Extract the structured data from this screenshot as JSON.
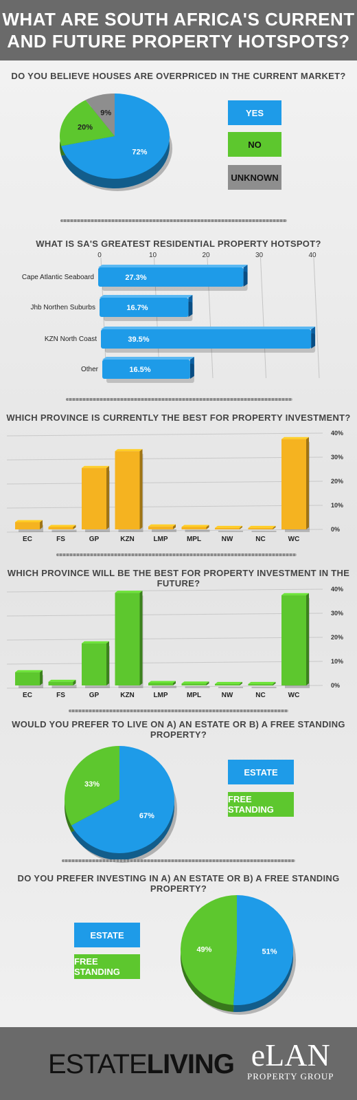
{
  "header": {
    "title_line1": "WHAT ARE SOUTH AFRICA'S CURRENT",
    "title_line2": "AND FUTURE PROPERTY HOTSPOTS?"
  },
  "colors": {
    "blue": "#1e9be8",
    "green": "#5dc72e",
    "grey": "#8e8e8e",
    "yellow": "#f5b320",
    "header": "#6a6a6a"
  },
  "footer": {
    "brand1a": "ESTATE",
    "brand1b": "LIVING",
    "brand2_big": "eLAN",
    "brand2_small": "PROPERTY GROUP"
  },
  "chart_data": [
    {
      "type": "pie",
      "title": "DO YOU BELIEVE HOUSES ARE OVERPRICED IN THE CURRENT MARKET?",
      "slices": [
        {
          "name": "YES",
          "value": 72,
          "label": "72%",
          "color": "#1e9be8"
        },
        {
          "name": "NO",
          "value": 20,
          "label": "20%",
          "color": "#5dc72e"
        },
        {
          "name": "UNKNOWN",
          "value": 9,
          "label": "9%",
          "color": "#8e8e8e"
        }
      ],
      "legend": [
        "YES",
        "NO",
        "UNKNOWN"
      ]
    },
    {
      "type": "bar",
      "orientation": "horizontal",
      "title": "WHAT IS SA'S GREATEST RESIDENTIAL PROPERTY HOTSPOT?",
      "categories": [
        "Cape Atlantic Seaboard",
        "Jhb Northen Suburbs",
        "KZN North Coast",
        "Other"
      ],
      "values": [
        27.3,
        16.7,
        39.5,
        16.5
      ],
      "value_labels": [
        "27.3%",
        "16.7%",
        "39.5%",
        "16.5%"
      ],
      "xlim": [
        0,
        40
      ],
      "ticks": [
        "0",
        "10",
        "20",
        "30",
        "40"
      ],
      "grid": true
    },
    {
      "type": "bar",
      "title": "WHICH PROVINCE IS CURRENTLY THE BEST FOR PROPERTY INVESTMENT?",
      "categories": [
        "EC",
        "FS",
        "GP",
        "KZN",
        "LMP",
        "MPL",
        "NW",
        "NC",
        "WC"
      ],
      "values": [
        3,
        1,
        25.5,
        32.5,
        1.2,
        1,
        0.6,
        0.6,
        37.5
      ],
      "ylim": [
        0,
        40
      ],
      "ticks": [
        "0%",
        "10%",
        "20%",
        "30%",
        "40%"
      ],
      "grid": true
    },
    {
      "type": "bar",
      "title": "WHICH PROVINCE WILL BE THE BEST FOR PROPERTY INVESTMENT IN THE FUTURE?",
      "categories": [
        "EC",
        "FS",
        "GP",
        "KZN",
        "LMP",
        "MPL",
        "NW",
        "NC",
        "WC"
      ],
      "values": [
        5.5,
        1.5,
        17.5,
        38.5,
        1,
        0.8,
        0.6,
        0.6,
        37.5
      ],
      "ylim": [
        0,
        40
      ],
      "ticks": [
        "0%",
        "10%",
        "20%",
        "30%",
        "40%"
      ],
      "grid": true
    },
    {
      "type": "pie",
      "title": "WOULD YOU PREFER TO LIVE ON A) AN ESTATE OR B) A FREE STANDING PROPERTY?",
      "slices": [
        {
          "name": "ESTATE",
          "value": 67,
          "label": "67%",
          "color": "#1e9be8"
        },
        {
          "name": "FREE STANDING",
          "value": 33,
          "label": "33%",
          "color": "#5dc72e"
        }
      ],
      "legend": [
        "ESTATE",
        "FREE STANDING"
      ]
    },
    {
      "type": "pie",
      "title": "DO YOU PREFER INVESTING IN A) AN ESTATE OR B) A FREE STANDING PROPERTY?",
      "slices": [
        {
          "name": "ESTATE",
          "value": 51,
          "label": "51%",
          "color": "#1e9be8"
        },
        {
          "name": "FREE STANDING",
          "value": 49,
          "label": "49%",
          "color": "#5dc72e"
        }
      ],
      "legend": [
        "ESTATE",
        "FREE STANDING"
      ]
    }
  ]
}
